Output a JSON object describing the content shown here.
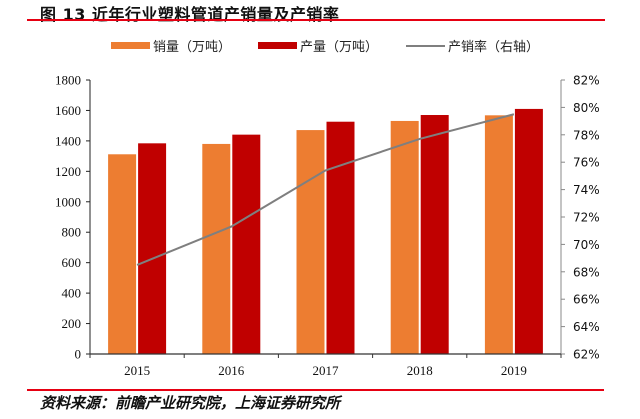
{
  "header": {
    "title": "图 13 近年行业塑料管道产销量及产销率"
  },
  "footer": {
    "source": "资料来源：前瞻产业研究院，上海证券研究所"
  },
  "colors": {
    "accent_rule": "#e60012",
    "sales": "#ed7d31",
    "production": "#c00000",
    "rate": "#7f7f7f"
  },
  "chart_data": {
    "type": "bar",
    "title": "近年行业塑料管道产销量及产销率",
    "xlabel": "",
    "ylabel": "",
    "categories": [
      "2015",
      "2016",
      "2017",
      "2018",
      "2019"
    ],
    "series": [
      {
        "name": "销量（万吨）",
        "type": "bar",
        "axis": "left",
        "color": "#ed7d31",
        "values": [
          1312,
          1380,
          1471,
          1531,
          1568
        ]
      },
      {
        "name": "产量（万吨）",
        "type": "bar",
        "axis": "left",
        "color": "#c00000",
        "values": [
          1384,
          1441,
          1526,
          1570,
          1610
        ]
      },
      {
        "name": "产销率（右轴）",
        "type": "line",
        "axis": "right",
        "color": "#7f7f7f",
        "values": [
          68.5,
          71.3,
          75.4,
          77.7,
          79.5
        ],
        "unit": "%"
      }
    ],
    "ylim": [
      0,
      1800
    ],
    "y_ticks": [
      "0",
      "200",
      "400",
      "600",
      "800",
      "1000",
      "1200",
      "1400",
      "1600",
      "1800"
    ],
    "y2lim": [
      62,
      82
    ],
    "y2_ticks": [
      "62%",
      "64%",
      "66%",
      "68%",
      "70%",
      "72%",
      "74%",
      "76%",
      "78%",
      "80%",
      "82%"
    ],
    "grid": false,
    "legend_position": "top"
  }
}
